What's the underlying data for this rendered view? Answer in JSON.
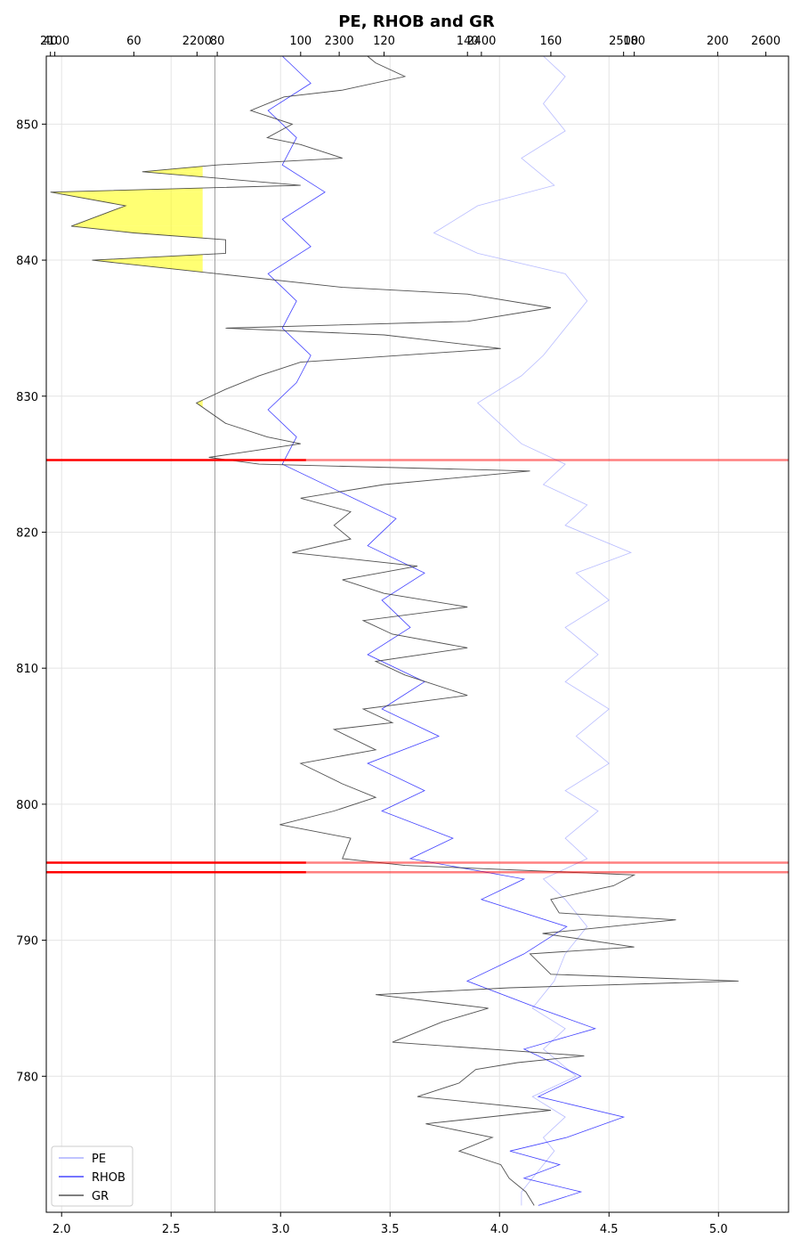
{
  "chart_data": {
    "type": "line",
    "title": "PE, RHOB and GR",
    "orientation": "depth-vertical",
    "grid": true,
    "legend_placement": "lower-left",
    "y_axis": {
      "label": "",
      "range": [
        770,
        855
      ],
      "ticks": [
        780,
        790,
        800,
        810,
        820,
        830,
        840,
        850
      ]
    },
    "x_axes": [
      {
        "position": "bottom",
        "range": [
          1.93,
          5.32
        ],
        "ticks": [
          2.0,
          2.5,
          3.0,
          3.5,
          4.0,
          4.5,
          5.0
        ],
        "tick_labels": [
          "2.0",
          "2.5",
          "3.0",
          "3.5",
          "4.0",
          "4.5",
          "5.0"
        ]
      },
      {
        "position": "top",
        "range": [
          39,
          217
        ],
        "ticks": [
          40,
          60,
          80,
          100,
          120,
          140,
          160,
          180,
          200
        ],
        "tick_labels": [
          "40",
          "60",
          "80",
          "100",
          "120",
          "140",
          "160",
          "180",
          "200"
        ]
      },
      {
        "position": "top",
        "range": [
          2094,
          2616
        ],
        "ticks": [
          2100,
          2200,
          2300,
          2400,
          2500,
          2600
        ],
        "tick_labels": [
          "2100",
          "2200",
          "2300",
          "2400",
          "2500",
          "2600"
        ]
      }
    ],
    "series": [
      {
        "name": "PE",
        "color": "#9aa0ff",
        "axis": "bottom",
        "points": [
          [
            4.1,
            770.5
          ],
          [
            4.1,
            771.5
          ],
          [
            4.15,
            772.5
          ],
          [
            4.2,
            773.5
          ],
          [
            4.25,
            774.5
          ],
          [
            4.2,
            775.5
          ],
          [
            4.3,
            777.0
          ],
          [
            4.15,
            778.5
          ],
          [
            4.35,
            780.0
          ],
          [
            4.2,
            782.0
          ],
          [
            4.3,
            783.5
          ],
          [
            4.15,
            785.0
          ],
          [
            4.25,
            787.0
          ],
          [
            4.3,
            789.0
          ],
          [
            4.4,
            791.0
          ],
          [
            4.3,
            793.0
          ],
          [
            4.2,
            794.5
          ],
          [
            4.4,
            796.0
          ],
          [
            4.3,
            797.5
          ],
          [
            4.45,
            799.5
          ],
          [
            4.3,
            801.0
          ],
          [
            4.5,
            803.0
          ],
          [
            4.35,
            805.0
          ],
          [
            4.5,
            807.0
          ],
          [
            4.3,
            809.0
          ],
          [
            4.45,
            811.0
          ],
          [
            4.3,
            813.0
          ],
          [
            4.5,
            815.0
          ],
          [
            4.35,
            817.0
          ],
          [
            4.6,
            818.5
          ],
          [
            4.3,
            820.5
          ],
          [
            4.4,
            822.0
          ],
          [
            4.2,
            823.5
          ],
          [
            4.3,
            825.0
          ],
          [
            4.1,
            826.5
          ],
          [
            4.0,
            828.0
          ],
          [
            3.9,
            829.5
          ],
          [
            4.1,
            831.5
          ],
          [
            4.2,
            833.0
          ],
          [
            4.3,
            835.0
          ],
          [
            4.4,
            837.0
          ],
          [
            4.3,
            839.0
          ],
          [
            3.9,
            840.5
          ],
          [
            3.7,
            842.0
          ],
          [
            3.9,
            844.0
          ],
          [
            4.25,
            845.5
          ],
          [
            4.1,
            847.5
          ],
          [
            4.3,
            849.5
          ],
          [
            4.2,
            851.5
          ],
          [
            4.3,
            853.5
          ],
          [
            4.2,
            855.0
          ]
        ]
      },
      {
        "name": "RHOB",
        "color": "#2020ff",
        "axis": "top_2",
        "points": [
          [
            2440,
            770.5
          ],
          [
            2470,
            771.5
          ],
          [
            2430,
            772.5
          ],
          [
            2455,
            773.5
          ],
          [
            2420,
            774.5
          ],
          [
            2460,
            775.5
          ],
          [
            2500,
            777.0
          ],
          [
            2440,
            778.5
          ],
          [
            2470,
            780.0
          ],
          [
            2430,
            782.0
          ],
          [
            2480,
            783.5
          ],
          [
            2440,
            785.0
          ],
          [
            2390,
            787.0
          ],
          [
            2430,
            789.0
          ],
          [
            2460,
            791.0
          ],
          [
            2400,
            793.0
          ],
          [
            2430,
            794.5
          ],
          [
            2350,
            796.0
          ],
          [
            2380,
            797.5
          ],
          [
            2330,
            799.5
          ],
          [
            2360,
            801.0
          ],
          [
            2320,
            803.0
          ],
          [
            2370,
            805.0
          ],
          [
            2330,
            807.0
          ],
          [
            2360,
            809.0
          ],
          [
            2320,
            811.0
          ],
          [
            2350,
            813.0
          ],
          [
            2330,
            815.0
          ],
          [
            2360,
            817.0
          ],
          [
            2320,
            819.0
          ],
          [
            2340,
            821.0
          ],
          [
            2300,
            823.0
          ],
          [
            2260,
            825.0
          ],
          [
            2270,
            827.0
          ],
          [
            2250,
            829.0
          ],
          [
            2270,
            831.0
          ],
          [
            2280,
            833.0
          ],
          [
            2260,
            835.0
          ],
          [
            2270,
            837.0
          ],
          [
            2250,
            839.0
          ],
          [
            2280,
            841.0
          ],
          [
            2260,
            843.0
          ],
          [
            2290,
            845.0
          ],
          [
            2260,
            847.0
          ],
          [
            2270,
            849.0
          ],
          [
            2250,
            851.0
          ],
          [
            2280,
            853.0
          ],
          [
            2260,
            855.0
          ]
        ]
      },
      {
        "name": "GR",
        "color": "#333333",
        "axis": "top_1",
        "points": [
          [
            156,
            770.5
          ],
          [
            154,
            771.5
          ],
          [
            150,
            772.5
          ],
          [
            148,
            773.5
          ],
          [
            138,
            774.5
          ],
          [
            146,
            775.5
          ],
          [
            130,
            776.5
          ],
          [
            160,
            777.5
          ],
          [
            128,
            778.5
          ],
          [
            138,
            779.5
          ],
          [
            142,
            780.5
          ],
          [
            152,
            781.0
          ],
          [
            168,
            781.5
          ],
          [
            122,
            782.5
          ],
          [
            134,
            784.0
          ],
          [
            145,
            785.0
          ],
          [
            118,
            786.0
          ],
          [
            150,
            786.5
          ],
          [
            205,
            787.0
          ],
          [
            160,
            787.5
          ],
          [
            155,
            789.0
          ],
          [
            180,
            789.5
          ],
          [
            158,
            790.5
          ],
          [
            190,
            791.5
          ],
          [
            162,
            792.0
          ],
          [
            160,
            793.0
          ],
          [
            175,
            794.0
          ],
          [
            180,
            794.8
          ],
          [
            125,
            795.5
          ],
          [
            110,
            796.0
          ],
          [
            112,
            797.5
          ],
          [
            95,
            798.5
          ],
          [
            108,
            799.5
          ],
          [
            118,
            800.5
          ],
          [
            110,
            801.5
          ],
          [
            100,
            803.0
          ],
          [
            118,
            804.0
          ],
          [
            108,
            805.5
          ],
          [
            122,
            806.0
          ],
          [
            115,
            807.0
          ],
          [
            140,
            808.0
          ],
          [
            125,
            809.5
          ],
          [
            118,
            810.5
          ],
          [
            140,
            811.5
          ],
          [
            122,
            812.5
          ],
          [
            115,
            813.5
          ],
          [
            140,
            814.5
          ],
          [
            120,
            815.5
          ],
          [
            110,
            816.5
          ],
          [
            128,
            817.5
          ],
          [
            98,
            818.5
          ],
          [
            112,
            819.5
          ],
          [
            108,
            820.5
          ],
          [
            112,
            821.5
          ],
          [
            100,
            822.5
          ],
          [
            120,
            823.5
          ],
          [
            155,
            824.5
          ],
          [
            90,
            825.0
          ],
          [
            78,
            825.5
          ],
          [
            100,
            826.5
          ],
          [
            92,
            827.0
          ],
          [
            82,
            828.0
          ],
          [
            75,
            829.5
          ],
          [
            82,
            830.5
          ],
          [
            90,
            831.5
          ],
          [
            100,
            832.5
          ],
          [
            148,
            833.5
          ],
          [
            120,
            834.5
          ],
          [
            82,
            835.0
          ],
          [
            140,
            835.5
          ],
          [
            160,
            836.5
          ],
          [
            140,
            837.5
          ],
          [
            110,
            838.0
          ],
          [
            80,
            839.0
          ],
          [
            50,
            840.0
          ],
          [
            82,
            840.5
          ],
          [
            82,
            841.5
          ],
          [
            60,
            842.0
          ],
          [
            45,
            842.5
          ],
          [
            58,
            844.0
          ],
          [
            40,
            845.0
          ],
          [
            100,
            845.5
          ],
          [
            62,
            846.5
          ],
          [
            80,
            847.0
          ],
          [
            110,
            847.5
          ],
          [
            100,
            848.5
          ],
          [
            92,
            849.0
          ],
          [
            98,
            850.0
          ],
          [
            88,
            851.0
          ],
          [
            96,
            852.0
          ],
          [
            110,
            852.5
          ],
          [
            125,
            853.5
          ],
          [
            118,
            854.5
          ],
          [
            116,
            855.0
          ]
        ]
      }
    ],
    "fill": {
      "description": "GR below baseline shaded",
      "baseline_top_1": 76.5,
      "color": "#ffff00"
    },
    "reference_line": {
      "axis": "bottom",
      "value": 2.7,
      "color": "#888888"
    },
    "horizontal_markers": [
      {
        "depth": 825.3,
        "color": "#ff0000"
      },
      {
        "depth": 795.7,
        "color": "#ff0000"
      },
      {
        "depth": 795.0,
        "color": "#ff0000"
      }
    ],
    "legend": [
      "PE",
      "RHOB",
      "GR"
    ]
  }
}
